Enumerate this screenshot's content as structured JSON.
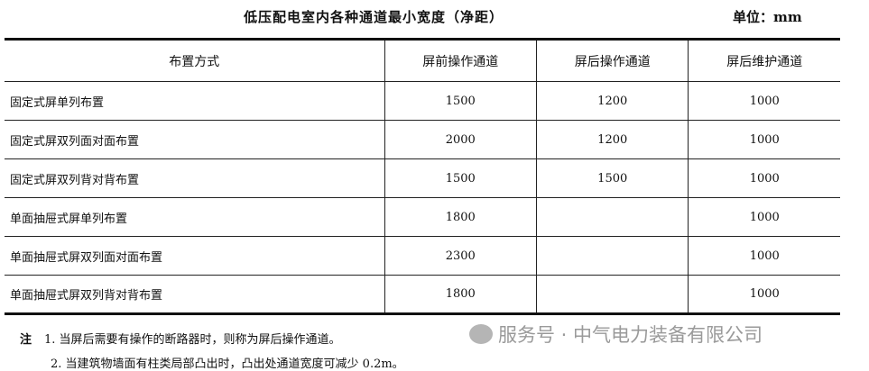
{
  "title": "低压配电室内各种通道最小宽度（净距）",
  "unit": "单位：mm",
  "table": {
    "headers": [
      "布置方式",
      "屏前操作通道",
      "屏后操作通道",
      "屏后维护通道"
    ],
    "rows": [
      [
        "固定式屏单列布置",
        "1500",
        "1200",
        "1000"
      ],
      [
        "固定式屏双列面对面布置",
        "2000",
        "1200",
        "1000"
      ],
      [
        "固定式屏双列背对背布置",
        "1500",
        "1500",
        "1000"
      ],
      [
        "单面抽屉式屏单列布置",
        "1800",
        "",
        "1000"
      ],
      [
        "单面抽屉式屏双列面对面布置",
        "2300",
        "",
        "1000"
      ],
      [
        "单面抽屉式屏双列背对背布置",
        "1800",
        "",
        "1000"
      ]
    ]
  },
  "notes": {
    "label": "注",
    "items": [
      "1. 当屏后需要有操作的断路器时，则称为屏后操作通道。",
      "2. 当建筑物墙面有柱类局部凸出时，凸出处通道宽度可减少 0.2m。"
    ]
  },
  "watermark": {
    "text": "服务号 · 中气电力装备有限公司",
    "icon": "wechat-icon"
  }
}
